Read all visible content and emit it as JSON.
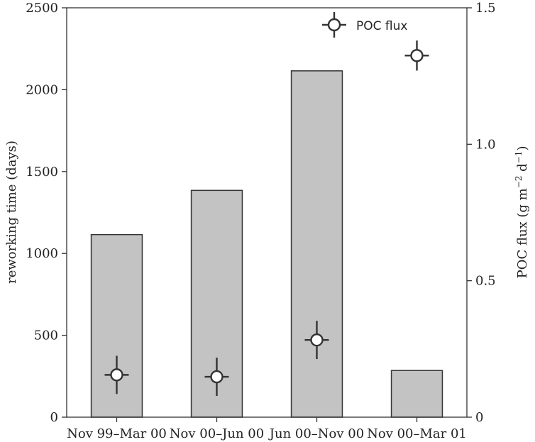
{
  "chart_data": {
    "type": "bar",
    "categories": [
      "Nov 99–Mar 00",
      "Nov 00–Jun 00",
      "Jun 00–Nov 00",
      "Nov 00–Mar 01"
    ],
    "bar_series": {
      "name": "reworking time",
      "values": [
        1115,
        1385,
        2115,
        285
      ],
      "axis": "left",
      "color": "#c3c3c4"
    },
    "point_series": {
      "name": "POC flux",
      "values": [
        0.155,
        0.148,
        0.283,
        1.325
      ],
      "error_y": [
        0.07,
        0.07,
        0.07,
        0.055
      ],
      "axis": "right"
    },
    "left_axis": {
      "label": "reworking time (days)",
      "ylim": [
        0,
        2500
      ],
      "ticks": [
        0,
        500,
        1000,
        1500,
        2000,
        2500
      ]
    },
    "right_axis": {
      "label_main": "POC flux (g m",
      "label_sup1": "−2",
      "label_mid": " d",
      "label_sup2": "−1",
      "label_end": ")",
      "ylim": [
        0,
        1.5
      ],
      "ticks": [
        0,
        0.5,
        1.0,
        1.5
      ],
      "tick_labels": [
        "0",
        "0.5",
        "1.0",
        "1.5"
      ]
    },
    "legend": {
      "label": "POC flux",
      "position": "top-right"
    },
    "grid": false,
    "colors": {
      "bar_fill": "#c3c3c4",
      "stroke": "#333333"
    }
  }
}
